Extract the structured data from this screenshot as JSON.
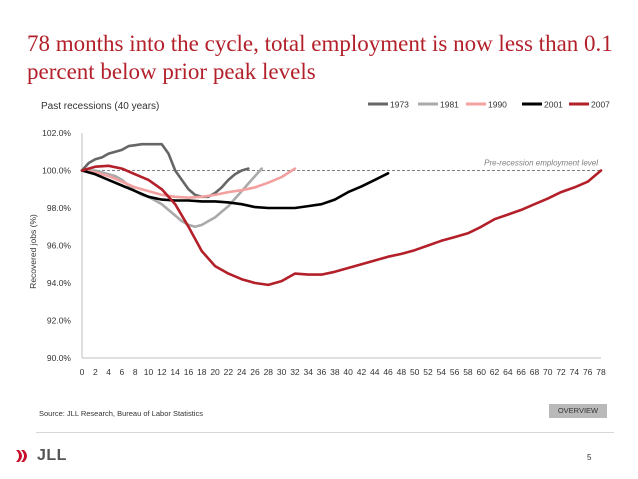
{
  "slide": {
    "title": "78 months into the cycle, total employment is now less than 0.1 percent below prior peak levels",
    "subtitle": "Past recessions (40 years)",
    "source": "Source: JLL Research, Bureau of Labor Statistics",
    "overview_label": "OVERVIEW",
    "page_number": "5",
    "logo_text": "JLL"
  },
  "chart_data": {
    "type": "line",
    "title": "Past recessions (40 years)",
    "ylabel": "Recovered jobs (%)",
    "xlabel": "",
    "ylim": [
      90,
      102
    ],
    "yticks": [
      90,
      92,
      94,
      96,
      98,
      100,
      102
    ],
    "ytick_labels": [
      "90.0%",
      "92.0%",
      "94.0%",
      "96.0%",
      "98.0%",
      "100.0%",
      "102.0%"
    ],
    "xlim": [
      0,
      78
    ],
    "xticks": [
      0,
      2,
      4,
      6,
      8,
      10,
      12,
      14,
      16,
      18,
      20,
      22,
      24,
      26,
      28,
      30,
      32,
      34,
      36,
      38,
      40,
      42,
      44,
      46,
      48,
      50,
      52,
      54,
      56,
      58,
      60,
      62,
      64,
      66,
      68,
      70,
      72,
      74,
      76,
      78
    ],
    "reference_line": {
      "y": 100,
      "label": "Pre-recession employment level",
      "style": "dashed"
    },
    "legend_position": "top-right",
    "series": [
      {
        "name": "1973",
        "color": "#666666",
        "x": [
          0,
          1,
          2,
          3,
          4,
          5,
          6,
          7,
          8,
          9,
          10,
          11,
          12,
          13,
          14,
          15,
          16,
          17,
          18,
          19,
          20,
          21,
          22,
          23,
          24,
          25
        ],
        "y": [
          100.0,
          100.4,
          100.6,
          100.7,
          100.9,
          101.0,
          101.1,
          101.3,
          101.35,
          101.4,
          101.4,
          101.4,
          101.4,
          100.9,
          100.0,
          99.5,
          99.0,
          98.7,
          98.6,
          98.6,
          98.8,
          99.1,
          99.5,
          99.8,
          100.0,
          100.1
        ]
      },
      {
        "name": "1981",
        "color": "#aaaaaa",
        "x": [
          0,
          1,
          2,
          3,
          4,
          5,
          6,
          7,
          8,
          9,
          10,
          11,
          12,
          13,
          14,
          15,
          16,
          17,
          18,
          19,
          20,
          21,
          22,
          23,
          24,
          25,
          26,
          27
        ],
        "y": [
          100.0,
          100.0,
          100.0,
          99.9,
          99.8,
          99.7,
          99.5,
          99.2,
          98.9,
          98.7,
          98.6,
          98.4,
          98.2,
          97.9,
          97.6,
          97.3,
          97.1,
          97.0,
          97.1,
          97.3,
          97.5,
          97.8,
          98.1,
          98.5,
          98.9,
          99.3,
          99.7,
          100.1
        ]
      },
      {
        "name": "1990",
        "color": "#f2a0a0",
        "x": [
          0,
          2,
          4,
          6,
          8,
          10,
          12,
          14,
          16,
          18,
          20,
          22,
          24,
          26,
          28,
          30,
          32
        ],
        "y": [
          100.0,
          99.9,
          99.7,
          99.4,
          99.1,
          98.9,
          98.7,
          98.6,
          98.55,
          98.6,
          98.7,
          98.85,
          98.95,
          99.1,
          99.35,
          99.65,
          100.1
        ]
      },
      {
        "name": "2001",
        "color": "#000000",
        "x": [
          0,
          2,
          4,
          6,
          8,
          10,
          12,
          14,
          16,
          18,
          20,
          22,
          24,
          26,
          28,
          30,
          32,
          34,
          36,
          38,
          40,
          42,
          44,
          46
        ],
        "y": [
          100.0,
          99.8,
          99.5,
          99.2,
          98.9,
          98.6,
          98.45,
          98.4,
          98.4,
          98.35,
          98.35,
          98.3,
          98.2,
          98.05,
          98.0,
          98.0,
          98.0,
          98.1,
          98.2,
          98.45,
          98.85,
          99.15,
          99.5,
          99.85
        ]
      },
      {
        "name": "2007",
        "color": "#b3202a",
        "x": [
          0,
          2,
          4,
          6,
          8,
          10,
          12,
          14,
          16,
          18,
          20,
          22,
          24,
          26,
          28,
          30,
          32,
          34,
          36,
          38,
          40,
          42,
          44,
          46,
          48,
          50,
          52,
          54,
          56,
          58,
          60,
          62,
          64,
          66,
          68,
          70,
          72,
          74,
          76,
          78
        ],
        "y": [
          100.0,
          100.2,
          100.25,
          100.1,
          99.8,
          99.5,
          99.0,
          98.2,
          97.0,
          95.7,
          94.9,
          94.5,
          94.2,
          94.0,
          93.9,
          94.1,
          94.5,
          94.45,
          94.45,
          94.6,
          94.8,
          95.0,
          95.2,
          95.4,
          95.55,
          95.75,
          96.0,
          96.25,
          96.45,
          96.65,
          97.0,
          97.4,
          97.65,
          97.9,
          98.2,
          98.5,
          98.85,
          99.1,
          99.4,
          100.0
        ]
      }
    ],
    "legend": [
      {
        "name": "1973",
        "color": "#666666"
      },
      {
        "name": "1981",
        "color": "#aaaaaa"
      },
      {
        "name": "1990",
        "color": "#f2a0a0"
      },
      {
        "name": "2001",
        "color": "#000000"
      },
      {
        "name": "2007",
        "color": "#b3202a"
      }
    ]
  }
}
